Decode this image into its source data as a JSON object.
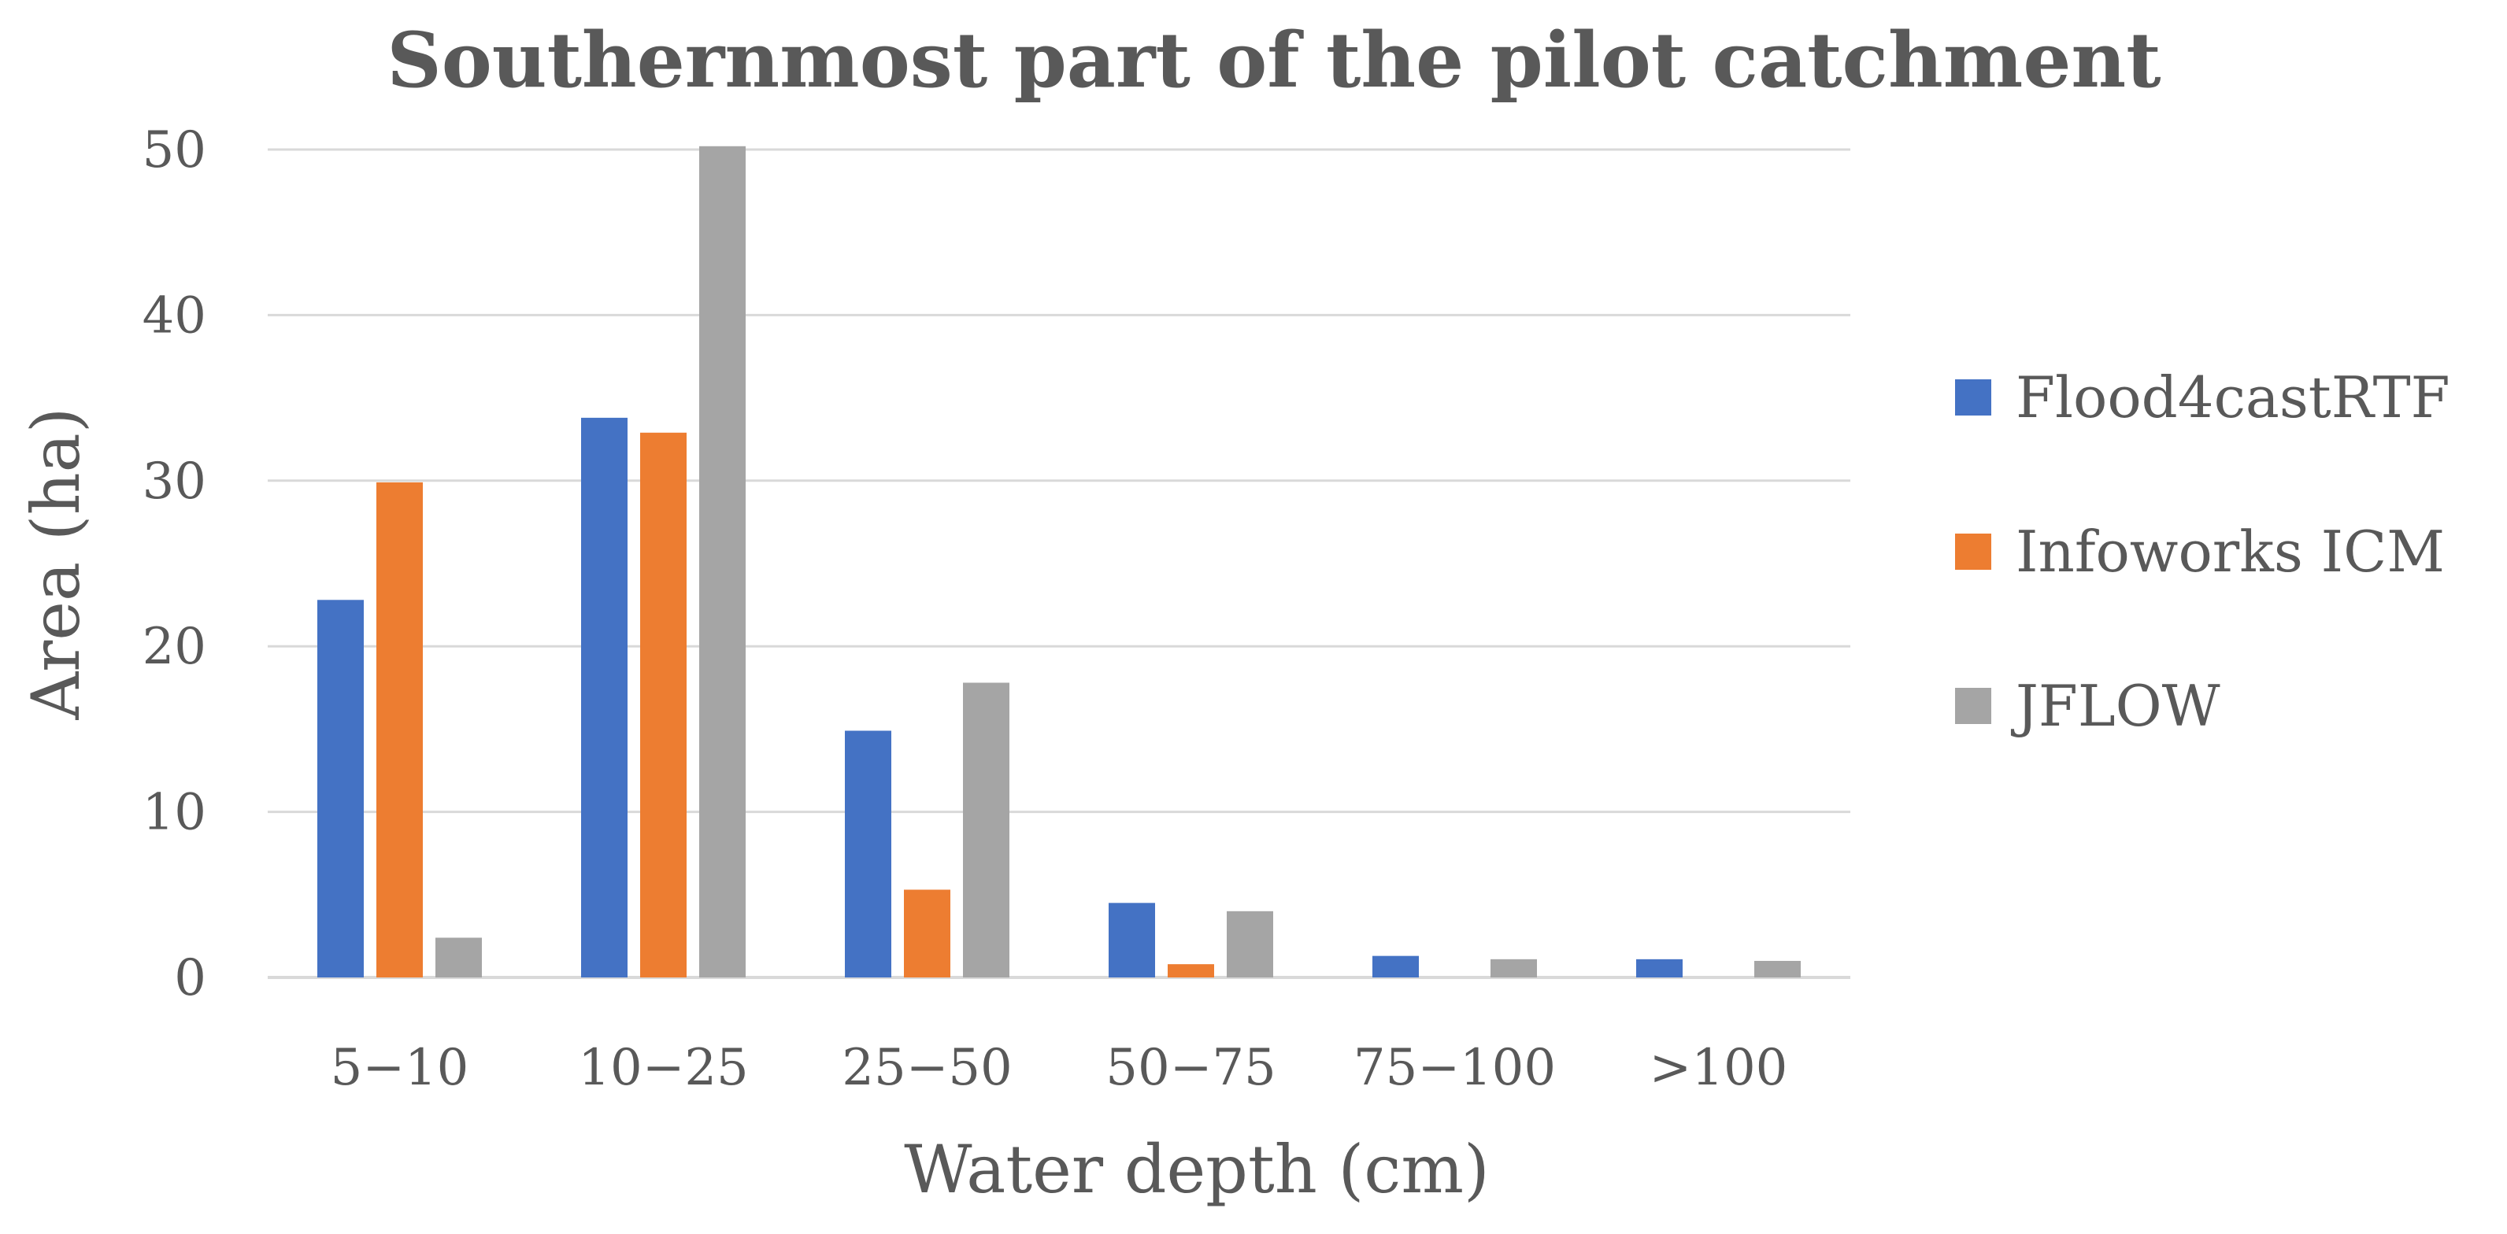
{
  "chart_data": {
    "type": "bar",
    "title": "Southernmost part of the pilot catchment",
    "xlabel": "Water depth (cm)",
    "ylabel": "Area (ha)",
    "categories": [
      "5−10",
      "10−25",
      "25−50",
      "50−75",
      "75−100",
      ">100"
    ],
    "series": [
      {
        "name": "Flood4castRTF",
        "color": "#4472c4",
        "values": [
          22.8,
          33.8,
          14.9,
          4.5,
          1.3,
          1.1
        ]
      },
      {
        "name": "Infoworks ICM",
        "color": "#ed7d31",
        "values": [
          29.9,
          32.9,
          5.3,
          0.8,
          0,
          0
        ]
      },
      {
        "name": "JFLOW",
        "color": "#a5a5a5",
        "values": [
          2.4,
          50.2,
          17.8,
          4.0,
          1.1,
          1.0
        ]
      }
    ],
    "ylim": [
      0,
      50
    ],
    "yticks": [
      0,
      10,
      20,
      30,
      40,
      50
    ],
    "grid": true,
    "legend_position": "right"
  }
}
